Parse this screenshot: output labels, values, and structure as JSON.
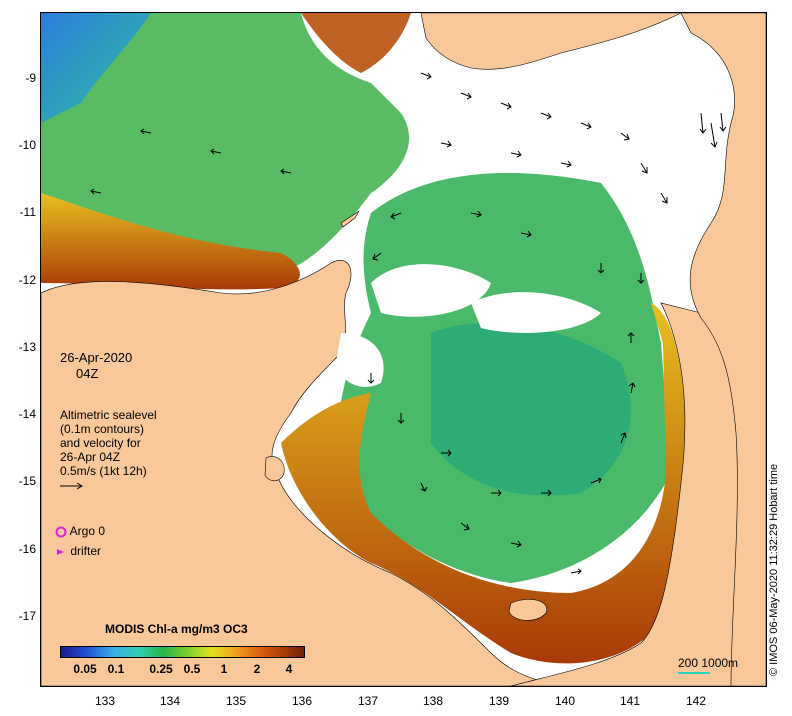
{
  "map": {
    "lat_ticks": [
      "-9",
      "-10",
      "-11",
      "-12",
      "-13",
      "-14",
      "-15",
      "-16",
      "-17"
    ],
    "lon_ticks": [
      "133",
      "134",
      "135",
      "136",
      "137",
      "138",
      "139",
      "140",
      "141",
      "142"
    ],
    "land_color": "#f8c89a",
    "ocean_color": "#ffffff"
  },
  "annotation": {
    "date": "26-Apr-2020",
    "time": "04Z",
    "altimetry_lines": [
      "Altimetric sealevel",
      "(0.1m contours)",
      "and velocity for",
      "26-Apr 04Z",
      "0.5m/s (1kt 12h)"
    ]
  },
  "legend": {
    "argo_label": "Argo 0",
    "drifter_label": "drifter",
    "marker_color": "#e020e0"
  },
  "colorbar": {
    "title": "MODIS Chl-a mg/m3 OC3",
    "ticks": [
      "0.05",
      "0.1",
      "0.25",
      "0.5",
      "1",
      "2",
      "4"
    ]
  },
  "scale": {
    "label": "200  1000m",
    "color": "#2ad0c0"
  },
  "credit": "© IMOS 06-May-2020 11:32:29 Hobart time"
}
